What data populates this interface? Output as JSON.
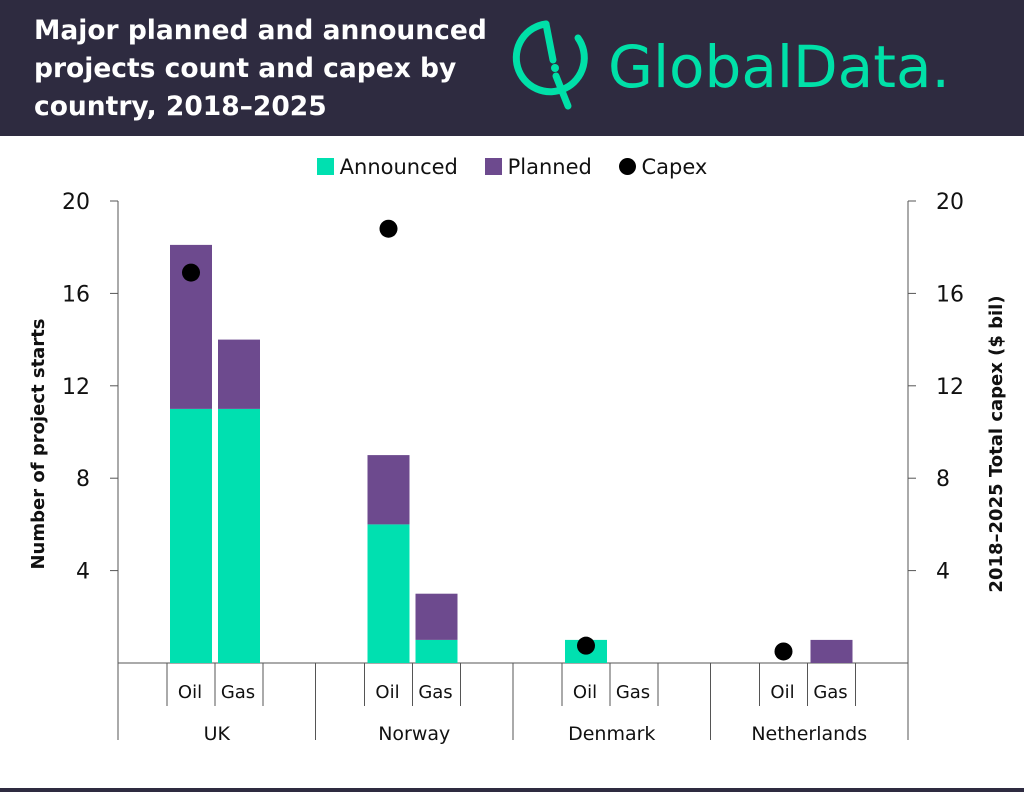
{
  "header": {
    "title_lines": [
      "Major planned and announced",
      "projects count and capex by",
      "country, 2018–2025"
    ],
    "brand": "GlobalData."
  },
  "colors": {
    "header_bg": "#2e2b40",
    "announced": "#00e0b0",
    "planned": "#6d4a8e",
    "capex": "#000000",
    "brand_green": "#00e0a8"
  },
  "legend": [
    {
      "label": "Announced",
      "color": "#00e0b0",
      "shape": "square"
    },
    {
      "label": "Planned",
      "color": "#6d4a8e",
      "shape": "square"
    },
    {
      "label": "Capex",
      "color": "#000000",
      "shape": "circle"
    }
  ],
  "chart_data": {
    "type": "bar",
    "stacked": true,
    "groups": [
      {
        "name": "UK",
        "categories": [
          "Oil",
          "Gas"
        ]
      },
      {
        "name": "Norway",
        "categories": [
          "Oil",
          "Gas"
        ]
      },
      {
        "name": "Denmark",
        "categories": [
          "Oil",
          "Gas"
        ]
      },
      {
        "name": "Netherlands",
        "categories": [
          "Oil",
          "Gas"
        ]
      }
    ],
    "series": [
      {
        "name": "Announced",
        "values": [
          [
            11,
            11
          ],
          [
            6,
            1
          ],
          [
            1,
            0
          ],
          [
            0,
            0
          ]
        ]
      },
      {
        "name": "Planned",
        "values": [
          [
            7.1,
            3
          ],
          [
            3,
            2
          ],
          [
            0,
            0
          ],
          [
            0,
            1
          ]
        ]
      }
    ],
    "capex": {
      "name": "Capex",
      "values": [
        16.9,
        18.8,
        0.75,
        0.5
      ],
      "anchor": "Oil"
    },
    "ylabel_left": "Number of project starts",
    "ylabel_right": "2018–2025 Total capex ($ bil)",
    "ylim": [
      0,
      20
    ],
    "yticks": [
      4,
      8,
      12,
      16,
      20
    ],
    "ylim_right": [
      0,
      20
    ],
    "yticks_right": [
      4,
      8,
      12,
      16,
      20
    ],
    "grid": false,
    "legend_position": "top-center"
  }
}
